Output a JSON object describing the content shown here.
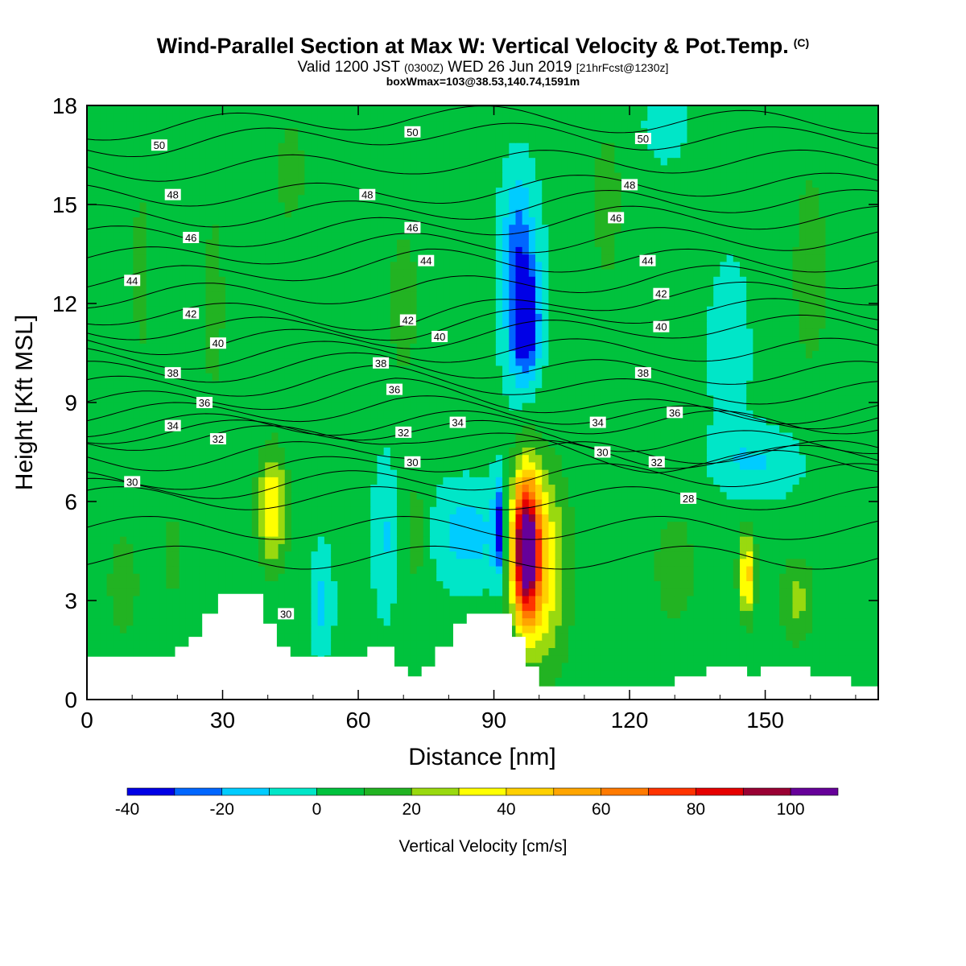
{
  "header": {
    "title_main": "Wind-Parallel Section at Max W: Vertical Velocity & Pot.Temp.",
    "title_copyright": "(C)",
    "valid_prefix": "Valid 1200 JST",
    "valid_z": "(0300Z)",
    "valid_date": "WED 26 Jun 2019",
    "valid_fcst": "[21hrFcst@1230z]",
    "boxwmax": "boxWmax=103@38.53,140.74,1591m"
  },
  "chart_data": {
    "type": "heatmap",
    "title": "Wind-Parallel Section at Max W: Vertical Velocity & Pot.Temp.",
    "xlabel": "Distance [nm]",
    "ylabel": "Height [Kft MSL]",
    "xlim": [
      0,
      175
    ],
    "ylim": [
      0,
      18
    ],
    "xticks": [
      0,
      30,
      60,
      90,
      120,
      150
    ],
    "yticks": [
      0,
      3,
      6,
      9,
      12,
      15,
      18
    ],
    "colorbar": {
      "title": "Vertical Velocity [cm/s]",
      "levels": [
        -40,
        -30,
        -20,
        -10,
        0,
        10,
        20,
        30,
        40,
        50,
        60,
        70,
        80,
        90,
        100,
        110
      ],
      "colors": [
        "#0000e6",
        "#0066ff",
        "#00ccff",
        "#00e6c8",
        "#00c23d",
        "#22b322",
        "#99d90f",
        "#ffff00",
        "#ffd000",
        "#ffa500",
        "#ff7a00",
        "#ff3300",
        "#e60000",
        "#990033",
        "#660099"
      ],
      "tick_labels": [
        "-40",
        "-20",
        "0",
        "20",
        "40",
        "60",
        "80",
        "100"
      ],
      "tick_values": [
        -40,
        -20,
        0,
        20,
        40,
        60,
        80,
        100
      ]
    },
    "background_w": 3,
    "w_features": [
      {
        "x": 97,
        "y": 4.6,
        "sx": 3.0,
        "sy": 2.2,
        "amp": 105
      },
      {
        "x": 101,
        "y": 4.0,
        "sx": 5.5,
        "sy": 3.0,
        "amp": 35
      },
      {
        "x": 41,
        "y": 5.8,
        "sx": 3.2,
        "sy": 1.7,
        "amp": 38
      },
      {
        "x": 146,
        "y": 3.8,
        "sx": 1.8,
        "sy": 1.3,
        "amp": 42
      },
      {
        "x": 157,
        "y": 3.0,
        "sx": 4.0,
        "sy": 1.3,
        "amp": 20
      },
      {
        "x": 19,
        "y": 4.3,
        "sx": 2.0,
        "sy": 1.5,
        "amp": 12
      },
      {
        "x": 73,
        "y": 5.0,
        "sx": 3.0,
        "sy": 2.0,
        "amp": 12
      },
      {
        "x": 84,
        "y": 5.0,
        "sx": 8.0,
        "sy": 1.4,
        "amp": -18
      },
      {
        "x": 66,
        "y": 5.0,
        "sx": 2.5,
        "sy": 2.2,
        "amp": -14
      },
      {
        "x": 52,
        "y": 3.0,
        "sx": 2.2,
        "sy": 1.5,
        "amp": -16
      },
      {
        "x": 91,
        "y": 5.2,
        "sx": 1.2,
        "sy": 1.5,
        "amp": -35
      },
      {
        "x": 97,
        "y": 11.5,
        "sx": 2.8,
        "sy": 1.5,
        "amp": -42
      },
      {
        "x": 96,
        "y": 12.5,
        "sx": 4.0,
        "sy": 2.8,
        "amp": -25
      },
      {
        "x": 95,
        "y": 14.5,
        "sx": 3.0,
        "sy": 1.5,
        "amp": -12
      },
      {
        "x": 148,
        "y": 7.2,
        "sx": 10.0,
        "sy": 1.0,
        "amp": -14
      },
      {
        "x": 142,
        "y": 10.5,
        "sx": 4.0,
        "sy": 2.5,
        "amp": -12
      },
      {
        "x": 128,
        "y": 17.5,
        "sx": 4.0,
        "sy": 1.0,
        "amp": -13
      },
      {
        "x": 12,
        "y": 13.0,
        "sx": 2.0,
        "sy": 3.0,
        "amp": 12
      },
      {
        "x": 28,
        "y": 12.0,
        "sx": 3.0,
        "sy": 3.5,
        "amp": 11
      },
      {
        "x": 45,
        "y": 16.0,
        "sx": 4.0,
        "sy": 2.0,
        "amp": 11
      },
      {
        "x": 70,
        "y": 12.0,
        "sx": 4.0,
        "sy": 3.0,
        "amp": 11
      },
      {
        "x": 115,
        "y": 15.0,
        "sx": 4.0,
        "sy": 3.0,
        "amp": 11
      },
      {
        "x": 160,
        "y": 13.0,
        "sx": 5.0,
        "sy": 4.0,
        "amp": 11
      },
      {
        "x": 8,
        "y": 3.5,
        "sx": 6.0,
        "sy": 3.0,
        "amp": 9
      },
      {
        "x": 130,
        "y": 4.0,
        "sx": 8.0,
        "sy": 3.0,
        "amp": 9
      }
    ],
    "terrain": [
      [
        0,
        1.3
      ],
      [
        19.5,
        1.3
      ],
      [
        19.5,
        1.6
      ],
      [
        22.5,
        1.6
      ],
      [
        22.5,
        1.9
      ],
      [
        25.5,
        1.9
      ],
      [
        25.5,
        2.6
      ],
      [
        29,
        2.6
      ],
      [
        29,
        3.2
      ],
      [
        39,
        3.2
      ],
      [
        39,
        2.3
      ],
      [
        42,
        2.3
      ],
      [
        42,
        1.6
      ],
      [
        45,
        1.6
      ],
      [
        45,
        1.3
      ],
      [
        62,
        1.3
      ],
      [
        62,
        1.6
      ],
      [
        68,
        1.6
      ],
      [
        68,
        1.0
      ],
      [
        71,
        1.0
      ],
      [
        71,
        0.7
      ],
      [
        74,
        0.7
      ],
      [
        74,
        1.0
      ],
      [
        77,
        1.0
      ],
      [
        77,
        1.6
      ],
      [
        81,
        1.6
      ],
      [
        81,
        2.3
      ],
      [
        84,
        2.3
      ],
      [
        84,
        2.6
      ],
      [
        94,
        2.6
      ],
      [
        94,
        1.9
      ],
      [
        97,
        1.9
      ],
      [
        97,
        1.0
      ],
      [
        100,
        1.0
      ],
      [
        100,
        0.4
      ],
      [
        130,
        0.4
      ],
      [
        130,
        0.7
      ],
      [
        137,
        0.7
      ],
      [
        137,
        1.0
      ],
      [
        146,
        1.0
      ],
      [
        146,
        0.7
      ],
      [
        149,
        0.7
      ],
      [
        149,
        1.0
      ],
      [
        160,
        1.0
      ],
      [
        160,
        0.7
      ],
      [
        169,
        0.7
      ],
      [
        169,
        0.4
      ],
      [
        175,
        0.4
      ]
    ],
    "isentropes": {
      "interval": 1,
      "labels": [
        {
          "x": 16,
          "y": 16.8,
          "text": "50"
        },
        {
          "x": 72,
          "y": 17.2,
          "text": "50"
        },
        {
          "x": 123,
          "y": 17.0,
          "text": "50"
        },
        {
          "x": 19,
          "y": 15.3,
          "text": "48"
        },
        {
          "x": 62,
          "y": 15.3,
          "text": "48"
        },
        {
          "x": 120,
          "y": 15.6,
          "text": "48"
        },
        {
          "x": 23,
          "y": 14.0,
          "text": "46"
        },
        {
          "x": 72,
          "y": 14.3,
          "text": "46"
        },
        {
          "x": 117,
          "y": 14.6,
          "text": "46"
        },
        {
          "x": 10,
          "y": 12.7,
          "text": "44"
        },
        {
          "x": 75,
          "y": 13.3,
          "text": "44"
        },
        {
          "x": 124,
          "y": 13.3,
          "text": "44"
        },
        {
          "x": 23,
          "y": 11.7,
          "text": "42"
        },
        {
          "x": 71,
          "y": 11.5,
          "text": "42"
        },
        {
          "x": 127,
          "y": 12.3,
          "text": "42"
        },
        {
          "x": 29,
          "y": 10.8,
          "text": "40"
        },
        {
          "x": 78,
          "y": 11.0,
          "text": "40"
        },
        {
          "x": 127,
          "y": 11.3,
          "text": "40"
        },
        {
          "x": 19,
          "y": 9.9,
          "text": "38"
        },
        {
          "x": 65,
          "y": 10.2,
          "text": "38"
        },
        {
          "x": 123,
          "y": 9.9,
          "text": "38"
        },
        {
          "x": 26,
          "y": 9.0,
          "text": "36"
        },
        {
          "x": 68,
          "y": 9.4,
          "text": "36"
        },
        {
          "x": 130,
          "y": 8.7,
          "text": "36"
        },
        {
          "x": 19,
          "y": 8.3,
          "text": "34"
        },
        {
          "x": 82,
          "y": 8.4,
          "text": "34"
        },
        {
          "x": 113,
          "y": 8.4,
          "text": "34"
        },
        {
          "x": 29,
          "y": 7.9,
          "text": "32"
        },
        {
          "x": 70,
          "y": 8.1,
          "text": "32"
        },
        {
          "x": 126,
          "y": 7.2,
          "text": "32"
        },
        {
          "x": 10,
          "y": 6.6,
          "text": "30"
        },
        {
          "x": 72,
          "y": 7.2,
          "text": "30"
        },
        {
          "x": 114,
          "y": 7.5,
          "text": "30"
        },
        {
          "x": 44,
          "y": 2.6,
          "text": "30"
        },
        {
          "x": 133,
          "y": 6.1,
          "text": "28"
        }
      ]
    }
  }
}
